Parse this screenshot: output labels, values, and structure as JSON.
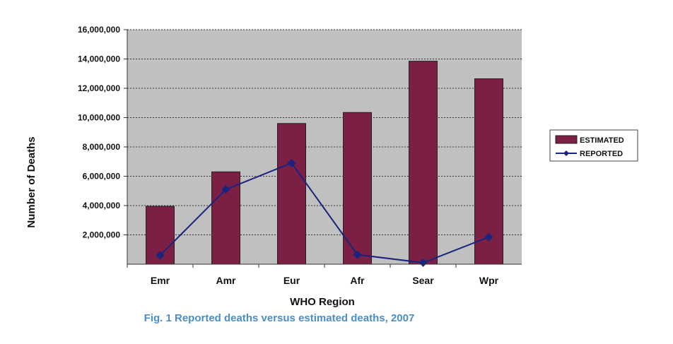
{
  "chart_data": {
    "type": "bar",
    "categories": [
      "Emr",
      "Amr",
      "Eur",
      "Afr",
      "Sear",
      "Wpr"
    ],
    "series": [
      {
        "name": "ESTIMATED",
        "kind": "bar",
        "color": "#7b1f45",
        "values": [
          3950000,
          6300000,
          9600000,
          10350000,
          13850000,
          12650000
        ]
      },
      {
        "name": "REPORTED",
        "kind": "line",
        "color": "#1a237e",
        "values": [
          600000,
          5100000,
          6900000,
          650000,
          100000,
          1850000
        ]
      }
    ],
    "xlabel": "WHO Region",
    "ylabel": "Number of Deaths",
    "ylim": [
      0,
      16000000
    ],
    "yticks": [
      "2,000,000",
      "4,000,000",
      "6,000,000",
      "8,000,000",
      "10,000,000",
      "12,000,000",
      "14,000,000",
      "16,000,000"
    ],
    "ytick_values": [
      2000000,
      4000000,
      6000000,
      8000000,
      10000000,
      12000000,
      14000000,
      16000000
    ],
    "legend_position": "right",
    "grid": true,
    "plot_background": "#c0c0c0"
  },
  "caption": "Fig.  1 Reported deaths versus estimated deaths, 2007"
}
